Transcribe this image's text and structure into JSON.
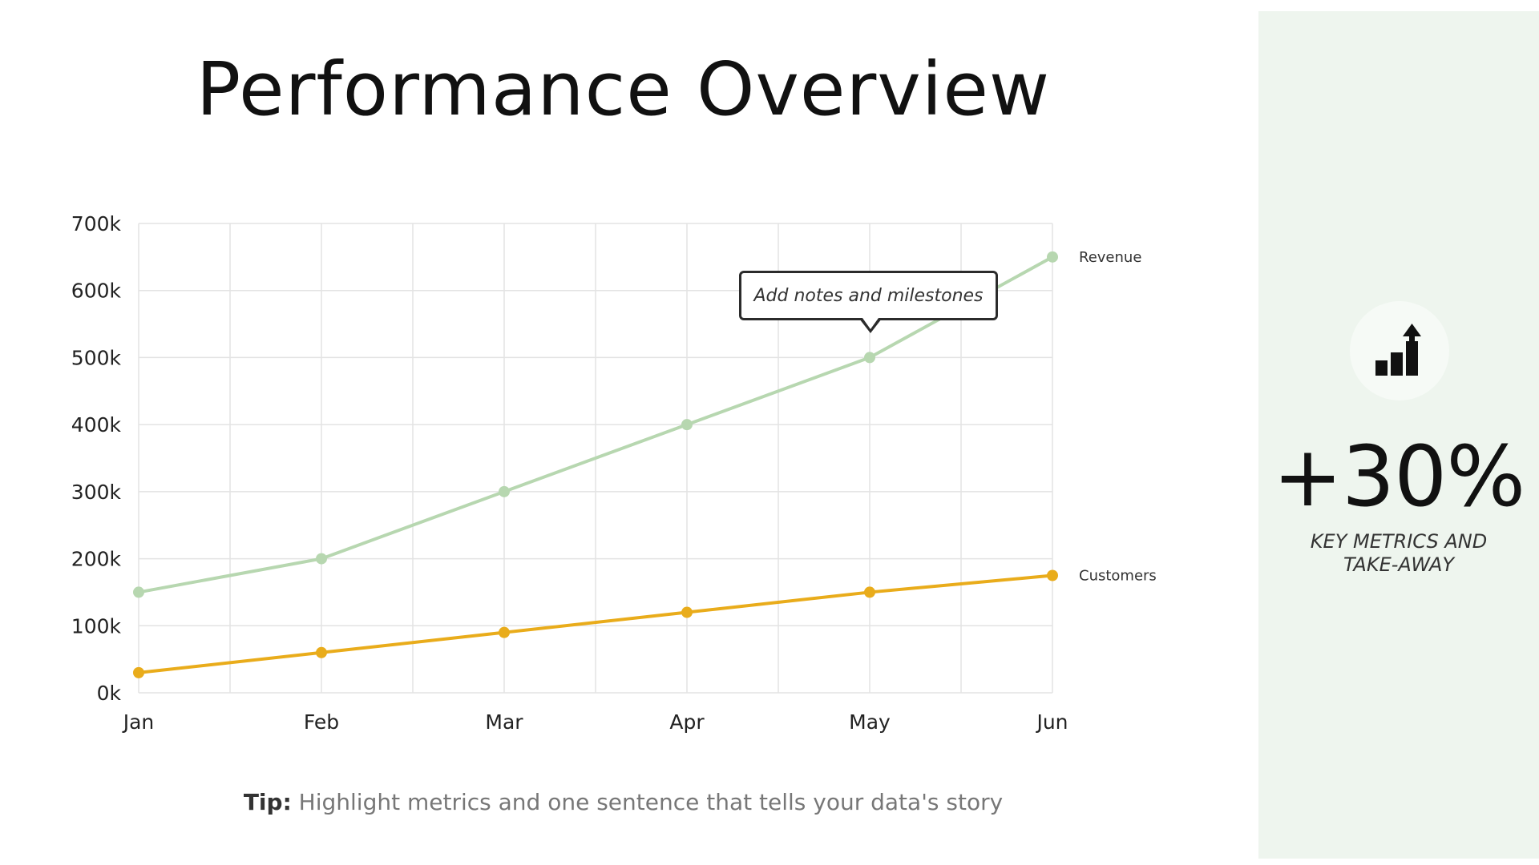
{
  "title": "Performance Overview",
  "chart_data": {
    "type": "line",
    "categories": [
      "Jan",
      "Feb",
      "Mar",
      "Apr",
      "May",
      "Jun"
    ],
    "series": [
      {
        "name": "Revenue",
        "values": [
          150000,
          200000,
          300000,
          400000,
          500000,
          650000
        ],
        "color": "#b7d7b0"
      },
      {
        "name": "Customers",
        "values": [
          30000,
          60000,
          90000,
          120000,
          150000,
          175000
        ],
        "color": "#e9ac1b"
      }
    ],
    "ylim": [
      0,
      700000
    ],
    "yticks": [
      "0k",
      "100k",
      "200k",
      "300k",
      "400k",
      "500k",
      "600k",
      "700k"
    ],
    "grid": true,
    "legend": "inline-right",
    "annotation": {
      "text": "Add notes and milestones",
      "category": "May"
    }
  },
  "tip": {
    "label": "Tip:",
    "text": "Highlight metrics and one sentence that tells your data's story"
  },
  "side_panel": {
    "icon": "bar-chart-up-arrow-icon",
    "metric": "+30%",
    "label_line1": "KEY METRICS AND",
    "label_line2": "TAKE-AWAY",
    "background": "#eef5ee"
  }
}
